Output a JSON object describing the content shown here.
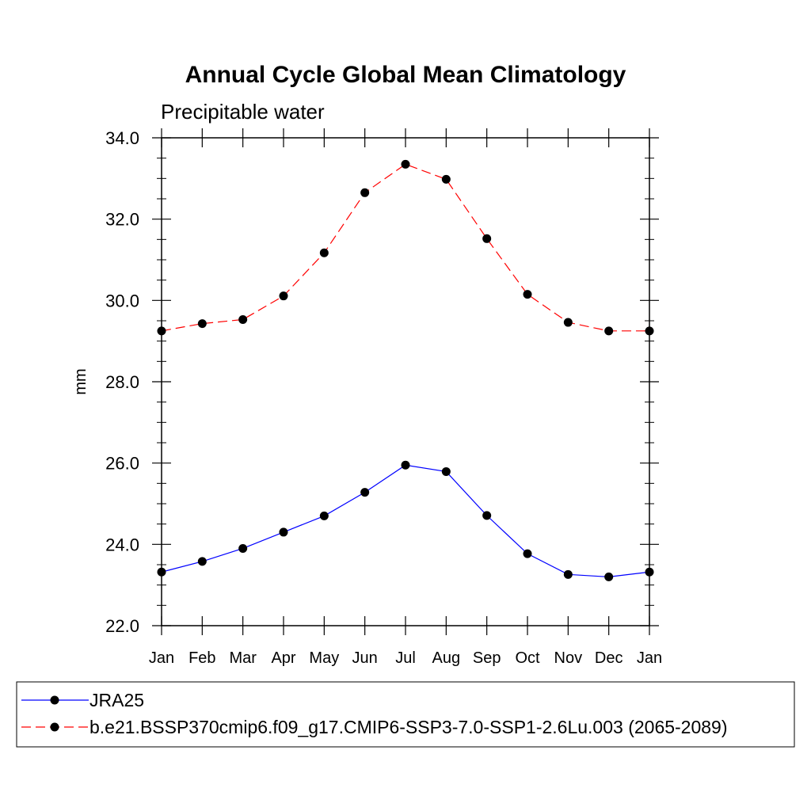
{
  "chart_data": {
    "type": "line",
    "title": "Annual Cycle Global Mean Climatology",
    "subtitle": "Precipitable water",
    "xlabel": "",
    "ylabel": "mm",
    "categories": [
      "Jan",
      "Feb",
      "Mar",
      "Apr",
      "May",
      "Jun",
      "Jul",
      "Aug",
      "Sep",
      "Oct",
      "Nov",
      "Dec",
      "Jan"
    ],
    "ylim": [
      22.0,
      34.0
    ],
    "yticks": [
      22.0,
      24.0,
      26.0,
      28.0,
      30.0,
      32.0,
      34.0
    ],
    "ytick_labels": [
      "22.0",
      "24.0",
      "26.0",
      "28.0",
      "30.0",
      "32.0",
      "34.0"
    ],
    "grid": false,
    "legend_position": "bottom",
    "series": [
      {
        "name": "JRA25",
        "color": "#0000ff",
        "dash": "solid",
        "values": [
          23.32,
          23.58,
          23.9,
          24.3,
          24.7,
          25.28,
          25.95,
          25.79,
          24.71,
          23.77,
          23.26,
          23.2,
          23.32
        ]
      },
      {
        "name": "b.e21.BSSP370cmip6.f09_g17.CMIP6-SSP3-7.0-SSP1-2.6Lu.003 (2065-2089)",
        "color": "#ff0000",
        "dash": "dashed",
        "values": [
          29.25,
          29.43,
          29.53,
          30.11,
          31.17,
          32.65,
          33.35,
          32.98,
          31.52,
          30.15,
          29.46,
          29.25,
          29.25
        ]
      }
    ]
  }
}
